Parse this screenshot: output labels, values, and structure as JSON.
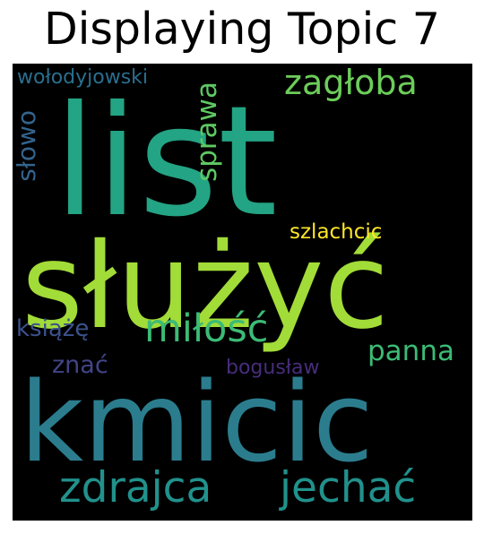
{
  "title": "Displaying Topic 7",
  "words": {
    "list": {
      "text": "list",
      "color": "#23a484"
    },
    "sluzyc": {
      "text": "służyć",
      "color": "#a2dc38"
    },
    "kmicic": {
      "text": "kmicic",
      "color": "#2b7d8e"
    },
    "zaglba": {
      "text": "zagłoba",
      "color": "#6ccd5a"
    },
    "wolodyjowski": {
      "text": "wołodyjowski",
      "color": "#2a6f8e"
    },
    "slowo": {
      "text": "słowo",
      "color": "#33648d"
    },
    "sprawa": {
      "text": "sprawa",
      "color": "#5ec962"
    },
    "szlachcic": {
      "text": "szlachcic",
      "color": "#fde725"
    },
    "ksiaze": {
      "text": "książę",
      "color": "#3b528b"
    },
    "milosc": {
      "text": "miłość",
      "color": "#3cbb75"
    },
    "panna": {
      "text": "panna",
      "color": "#3cbb75"
    },
    "znac": {
      "text": "znać",
      "color": "#414487"
    },
    "boguslaw": {
      "text": "bogusław",
      "color": "#472d7b"
    },
    "zdrajca": {
      "text": "zdrajca",
      "color": "#21918c"
    },
    "jechac": {
      "text": "jechać",
      "color": "#21918c"
    }
  }
}
